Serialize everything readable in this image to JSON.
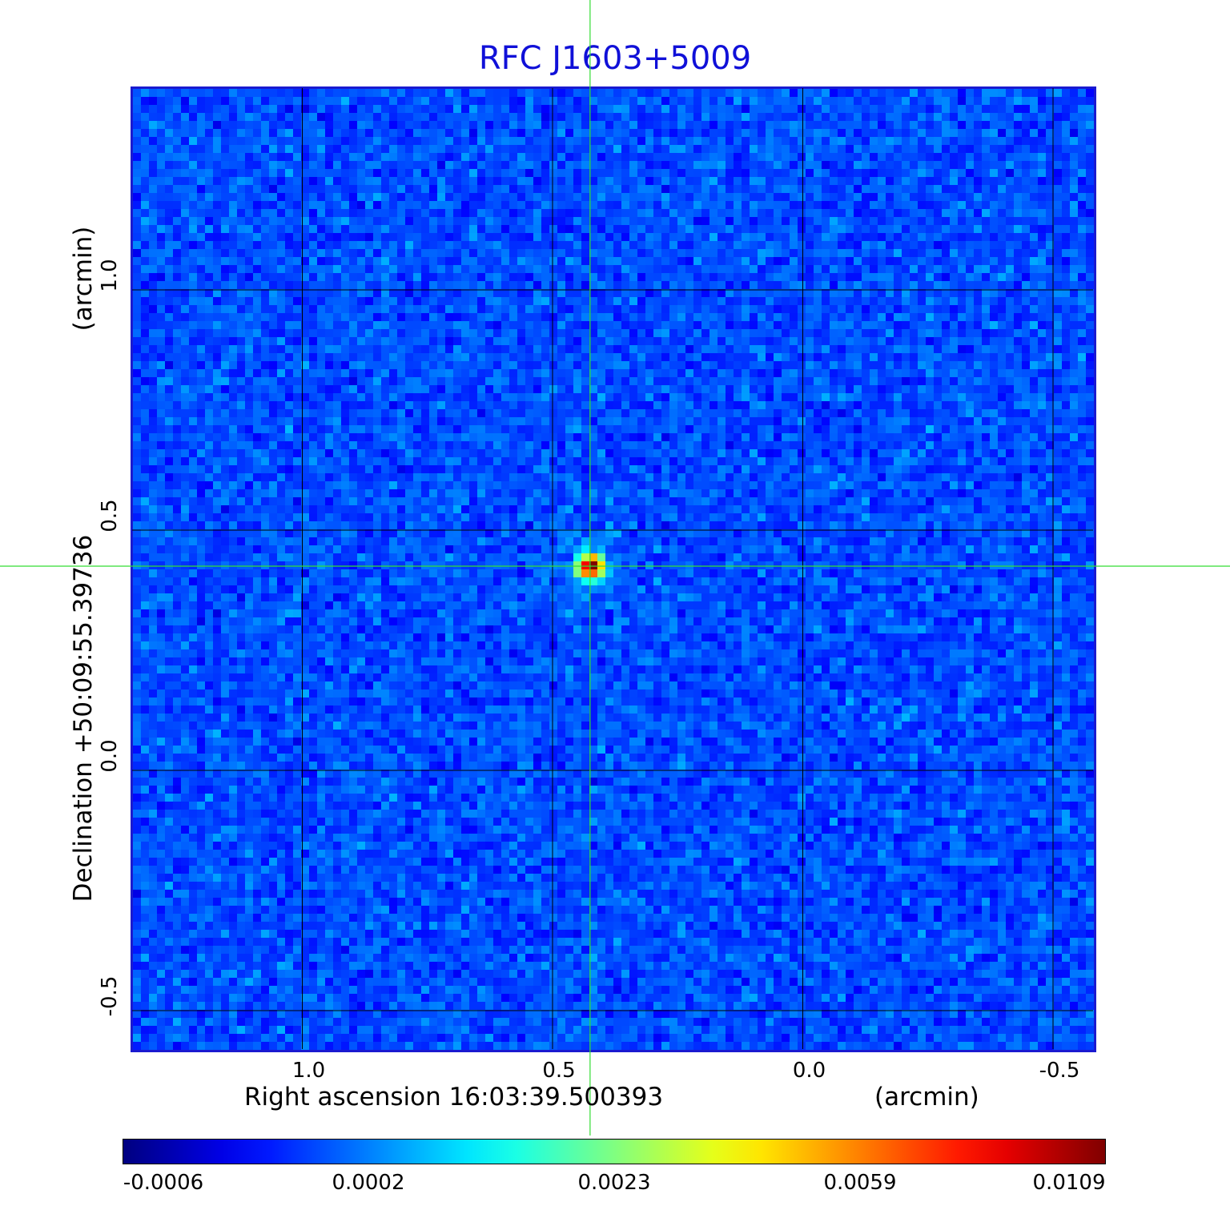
{
  "chart_data": {
    "type": "heatmap",
    "title": "RFC J1603+5009",
    "xlabel": "Right ascension  16:03:39.500393",
    "xunit": "(arcmin)",
    "ylabel": "Declination  +50:09:55.39736",
    "yunit": "(arcmin)",
    "x_axis_reversed": true,
    "xlim": [
      1.34,
      -0.58
    ],
    "ylim": [
      -0.58,
      1.42
    ],
    "x_ticks": [
      {
        "value": 1.0,
        "label": "1.0"
      },
      {
        "value": 0.5,
        "label": "0.5"
      },
      {
        "value": 0.0,
        "label": "0.0"
      },
      {
        "value": -0.5,
        "label": "-0.5"
      }
    ],
    "y_ticks": [
      {
        "value": 1.0,
        "label": "1.0"
      },
      {
        "value": 0.5,
        "label": "0.5"
      },
      {
        "value": 0.0,
        "label": "0.0"
      },
      {
        "value": -0.5,
        "label": "-0.5"
      }
    ],
    "grid": true,
    "crosshair": {
      "x": 0.425,
      "y": 0.425,
      "color": "#33dd33"
    },
    "source_peak": {
      "x": 0.425,
      "y": 0.425,
      "value": 0.0109
    },
    "colormap": "jet",
    "colorbar": {
      "labels": [
        "-0.0006",
        "0.0002",
        "0.0023",
        "0.0059",
        "0.0109"
      ],
      "positions": [
        0,
        0.25,
        0.5,
        0.75,
        1.0
      ],
      "placement": "bottom"
    },
    "colors": {
      "title": "#1010d8",
      "frame": "#1a1ad0",
      "grid": "#000000"
    }
  }
}
